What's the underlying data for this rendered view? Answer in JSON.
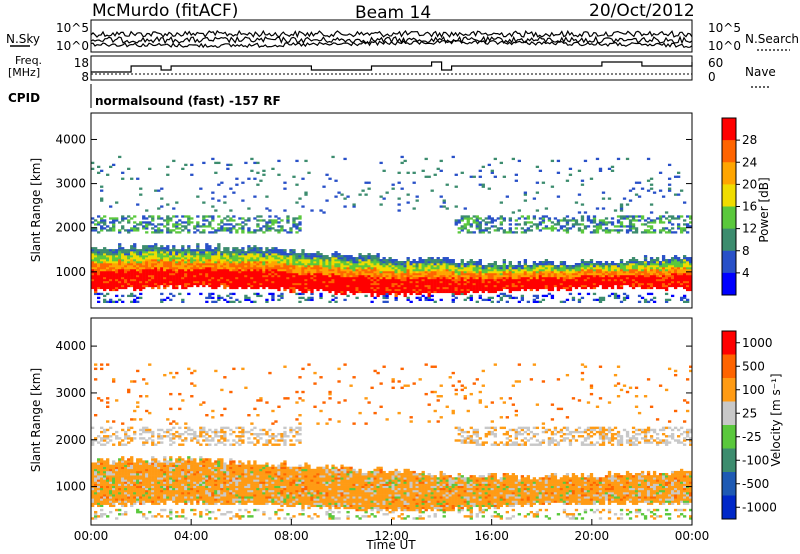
{
  "header": {
    "station": "McMurdo (fitACF)",
    "beam": "Beam 14",
    "date": "20/Oct/2012"
  },
  "noise_panel": {
    "left_label": "N.Sky",
    "right_label": "N.Search",
    "left_ticks": [
      "10^5",
      "10^0"
    ],
    "right_ticks": [
      "10^5",
      "10^0"
    ]
  },
  "freq_panel": {
    "left_label_1": "Freq.",
    "left_label_2": "[MHz]",
    "right_label": "Nave",
    "left_ticks": [
      "18",
      "8"
    ],
    "right_ticks": [
      "60",
      "0"
    ]
  },
  "cpid": {
    "label": "CPID",
    "text": "normalsound (fast) -157 RF"
  },
  "colors": {
    "power_scale": [
      "#0000ff",
      "#2850c8",
      "#3c8c6e",
      "#5ac83c",
      "#f0dc00",
      "#ffa500",
      "#ff6400",
      "#ff0000"
    ],
    "velocity_scale": [
      "#0028c8",
      "#1e5ab4",
      "#3c8c6e",
      "#5ac83c",
      "#c8c8c8",
      "#ff9b14",
      "#ff6400",
      "#ff0000"
    ]
  },
  "chart_data": [
    {
      "type": "heatmap",
      "name": "power",
      "xlabel": "",
      "ylabel": "Slant Range [km]",
      "ylim": [
        180,
        4600
      ],
      "y_ticks": [
        "1000",
        "2000",
        "3000",
        "4000"
      ],
      "colorbar_label": "Power [dB]",
      "colorbar_ticks": [
        "4",
        "8",
        "12",
        "16",
        "20",
        "24",
        "28"
      ],
      "colorbar_range": [
        0,
        32
      ]
    },
    {
      "type": "heatmap",
      "name": "velocity",
      "xlabel": "Time UT",
      "ylabel": "Slant Range [km]",
      "ylim": [
        180,
        4600
      ],
      "x_ticks": [
        "00:00",
        "04:00",
        "08:00",
        "12:00",
        "16:00",
        "20:00",
        "00:00"
      ],
      "y_ticks": [
        "1000",
        "2000",
        "3000",
        "4000"
      ],
      "colorbar_label": "Velocity [m s⁻¹]",
      "colorbar_ticks": [
        "1000",
        "500",
        "100",
        "25",
        "-25",
        "-100",
        "-500",
        "-1000"
      ]
    }
  ]
}
